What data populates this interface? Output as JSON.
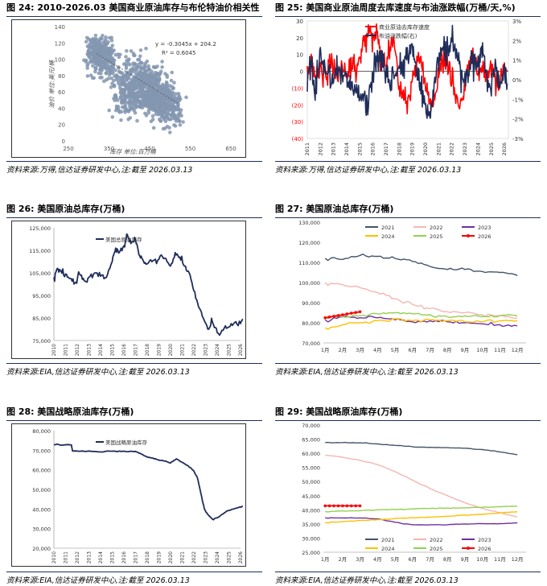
{
  "charts": [
    {
      "id": "c24",
      "title": "图 24: 2010-2026.03 美国商业原油库存与布伦特油价相关性",
      "source": "资料来源:万得,信达证券研发中心,注:截至 2026.03.13",
      "chart_data": {
        "type": "scatter",
        "xlabel": "库存 单位:百万桶",
        "ylabel": "油价 单位:美元/桶",
        "xlim": [
          250,
          650
        ],
        "ylim": [
          0,
          140
        ],
        "xticks": [
          "250",
          "350",
          "450",
          "550",
          "650"
        ],
        "yticks": [
          "0",
          "20",
          "40",
          "60",
          "80",
          "100",
          "120",
          "140"
        ],
        "equation": "y = -0.3045x + 204.2",
        "r2": "R² = 0.6045",
        "trendline": {
          "slope": -0.3045,
          "intercept": 204.2,
          "x_range": [
            320,
            520
          ]
        },
        "clusters": [
          {
            "cx": 320,
            "cy": 108,
            "sx": 12,
            "sy": 10,
            "n": 220
          },
          {
            "cx": 345,
            "cy": 100,
            "sx": 10,
            "sy": 14,
            "n": 120
          },
          {
            "cx": 395,
            "cy": 65,
            "sx": 18,
            "sy": 18,
            "n": 260
          },
          {
            "cx": 440,
            "cy": 72,
            "sx": 22,
            "sy": 14,
            "n": 260
          },
          {
            "cx": 470,
            "cy": 50,
            "sx": 25,
            "sy": 9,
            "n": 320
          },
          {
            "cx": 500,
            "cy": 40,
            "sx": 15,
            "sy": 12,
            "n": 120
          }
        ]
      }
    },
    {
      "id": "c25",
      "title": "图 25: 美国商业原油周度去库速度与布油涨跌幅(万桶/天,%)",
      "source": "资料来源:万得,信达证券研发中心,注:截至 2026.03.13",
      "chart_data": {
        "type": "line",
        "yticks_left": [
          "30",
          "20",
          "10",
          "0",
          "(10)",
          "(20)",
          "(30)",
          "(40)"
        ],
        "ylim_left": [
          -40,
          30
        ],
        "yticks_right": [
          "3%",
          "2%",
          "1%",
          "0%",
          "-1%",
          "-2%",
          "-3%"
        ],
        "ylim_right": [
          -3,
          3
        ],
        "xticks": [
          "2011",
          "2012",
          "2013",
          "2014",
          "2015",
          "2016",
          "2017",
          "2018",
          "2019",
          "2020",
          "2021",
          "2022",
          "2023",
          "2024",
          "2025",
          "2026"
        ],
        "series": [
          {
            "name": "商业原油去库存速度",
            "axis": "left",
            "color": "#ff0000",
            "x": [
              2011.0,
              2011.3,
              2011.6,
              2012.0,
              2012.4,
              2012.8,
              2013.2,
              2013.6,
              2014.0,
              2014.3,
              2014.6,
              2015.0,
              2015.3,
              2015.6,
              2016.0,
              2016.3,
              2016.6,
              2017.0,
              2017.3,
              2017.6,
              2018.0,
              2018.3,
              2018.6,
              2019.0,
              2019.3,
              2019.6,
              2020.0,
              2020.3,
              2020.6,
              2021.0,
              2021.3,
              2021.6,
              2022.0,
              2022.3,
              2022.6,
              2023.0,
              2023.3,
              2023.6,
              2024.0,
              2024.3,
              2024.6,
              2025.0,
              2025.3,
              2025.6,
              2026.0,
              2026.2
            ],
            "y": [
              0,
              6,
              -5,
              4,
              -4,
              7,
              -3,
              5,
              -2,
              3,
              -1,
              5,
              18,
              22,
              18,
              25,
              10,
              2,
              15,
              18,
              -8,
              -15,
              -20,
              -5,
              3,
              6,
              -10,
              -18,
              -20,
              -5,
              8,
              5,
              -2,
              -15,
              -22,
              -8,
              5,
              8,
              -3,
              4,
              -5,
              3,
              -2,
              -6,
              2,
              0
            ]
          },
          {
            "name": "布油涨跌幅(右)",
            "axis": "right",
            "color": "#1f2d5a",
            "x": [
              2011.0,
              2011.3,
              2011.6,
              2012.0,
              2012.4,
              2012.8,
              2013.2,
              2013.6,
              2014.0,
              2014.3,
              2014.6,
              2015.0,
              2015.3,
              2015.6,
              2016.0,
              2016.3,
              2016.6,
              2017.0,
              2017.3,
              2017.6,
              2018.0,
              2018.3,
              2018.6,
              2019.0,
              2019.3,
              2019.6,
              2020.0,
              2020.3,
              2020.6,
              2021.0,
              2021.3,
              2021.6,
              2022.0,
              2022.3,
              2022.6,
              2023.0,
              2023.3,
              2023.6,
              2024.0,
              2024.3,
              2024.6,
              2025.0,
              2025.3,
              2025.6,
              2026.0,
              2026.2
            ],
            "y": [
              0.3,
              0.8,
              -0.5,
              1.2,
              0.6,
              -0.3,
              0.4,
              0.2,
              0.3,
              -0.2,
              -0.6,
              -1.2,
              -0.8,
              -1.4,
              0.5,
              1.0,
              1.3,
              0.2,
              -0.3,
              0.4,
              0.8,
              0.6,
              1.2,
              1.5,
              0.2,
              -0.2,
              -1.5,
              -2.0,
              -0.8,
              1.0,
              1.8,
              1.2,
              2.2,
              1.5,
              0.6,
              -0.3,
              0.5,
              1.0,
              0.8,
              1.6,
              0.2,
              -0.4,
              1.3,
              -0.5,
              0.4,
              -0.2
            ]
          }
        ]
      }
    },
    {
      "id": "c26",
      "title": "图 26: 美国原油总库存(万桶)",
      "source": "资料来源:EIA,信达证券研发中心,注:截至 2026.03.13",
      "chart_data": {
        "type": "line",
        "ylim": [
          75000,
          125000
        ],
        "yticks": [
          "75,000",
          "85,000",
          "95,000",
          "105,000",
          "115,000",
          "125,000"
        ],
        "xticks": [
          "2010",
          "2011",
          "2012",
          "2013",
          "2014",
          "2015",
          "2016",
          "2017",
          "2018",
          "2019",
          "2020",
          "2021",
          "2022",
          "2023",
          "2024",
          "2025",
          "2026"
        ],
        "series": [
          {
            "name": "美国总原油库存",
            "color": "#1f2d5a",
            "x": [
              2010.0,
              2010.3,
              2010.6,
              2011.0,
              2011.4,
              2011.8,
              2012.2,
              2012.6,
              2013.0,
              2013.5,
              2014.0,
              2014.5,
              2015.0,
              2015.3,
              2015.6,
              2016.0,
              2016.3,
              2016.6,
              2017.0,
              2017.3,
              2017.6,
              2018.0,
              2018.5,
              2019.0,
              2019.5,
              2020.0,
              2020.4,
              2020.8,
              2021.2,
              2021.6,
              2022.0,
              2022.4,
              2022.8,
              2023.2,
              2023.6,
              2024.0,
              2024.5,
              2025.0,
              2025.5,
              2026.0,
              2026.2
            ],
            "y": [
              103000,
              107000,
              106000,
              104500,
              102500,
              100500,
              104500,
              101500,
              103000,
              105000,
              103500,
              103000,
              110000,
              116000,
              114000,
              117000,
              122000,
              118000,
              120000,
              113000,
              111000,
              109000,
              110500,
              111000,
              111500,
              108000,
              114000,
              112000,
              108000,
              105000,
              97000,
              90000,
              85000,
              80000,
              83000,
              78500,
              79500,
              81000,
              83000,
              82500,
              84500
            ]
          }
        ]
      }
    },
    {
      "id": "c27",
      "title": "图 27: 美国原油总库存(万桶)",
      "source": "资料来源:EIA,信达证券研发中心,注:截至 2026.03.13",
      "chart_data": {
        "type": "line",
        "ylim": [
          70000,
          130000
        ],
        "yticks": [
          "70,000",
          "80,000",
          "90,000",
          "100,000",
          "110,000",
          "120,000",
          "130,000"
        ],
        "categories": [
          "1月",
          "2月",
          "3月",
          "4月",
          "5月",
          "6月",
          "7月",
          "8月",
          "9月",
          "10月",
          "11月",
          "12月"
        ],
        "series": [
          {
            "name": "2021",
            "color": "#44546a",
            "values": [
              112000,
              111500,
              113500,
              113000,
              112000,
              110500,
              108000,
              106500,
              106500,
              105500,
              105000,
              103500
            ]
          },
          {
            "name": "2022",
            "color": "#f4b6b0",
            "values": [
              100000,
              99000,
              97500,
              95000,
              92000,
              89000,
              87000,
              85500,
              85000,
              84000,
              83500,
              82500
            ]
          },
          {
            "name": "2023",
            "color": "#7030a0",
            "values": [
              81500,
              83000,
              82500,
              82500,
              81500,
              80500,
              81000,
              80500,
              80000,
              79500,
              79000,
              78500
            ]
          },
          {
            "name": "2024",
            "color": "#ffc000",
            "values": [
              77500,
              79000,
              80000,
              81000,
              82000,
              81000,
              81500,
              81000,
              80500,
              80500,
              81000,
              81000
            ]
          },
          {
            "name": "2025",
            "color": "#92d050",
            "values": [
              82500,
              83000,
              83500,
              84500,
              85000,
              84500,
              84000,
              83000,
              83500,
              83000,
              83500,
              83500
            ]
          },
          {
            "name": "2026",
            "color": "#ff0000",
            "values": [
              82500,
              84000,
              85500,
              null,
              null,
              null,
              null,
              null,
              null,
              null,
              null,
              null
            ]
          }
        ]
      }
    },
    {
      "id": "c28",
      "title": "图 28: 美国战略原油库存(万桶)",
      "source": "资料来源:EIA,信达证券研发中心,注:截至 2026.03.13",
      "chart_data": {
        "type": "line",
        "ylim": [
          20000,
          80000
        ],
        "yticks": [
          "20,000",
          "30,000",
          "40,000",
          "50,000",
          "60,000",
          "70,000",
          "80,000"
        ],
        "xticks": [
          "2010",
          "2011",
          "2012",
          "2013",
          "2014",
          "2015",
          "2016",
          "2017",
          "2018",
          "2019",
          "2020",
          "2021",
          "2022",
          "2023",
          "2024",
          "2025",
          "2026"
        ],
        "series": [
          {
            "name": "美国战略原油库存",
            "color": "#1f2d5a",
            "x": [
              2010.0,
              2011.5,
              2011.6,
              2013.0,
              2014.0,
              2015.0,
              2016.0,
              2017.0,
              2017.5,
              2018.0,
              2018.5,
              2019.0,
              2019.5,
              2020.0,
              2020.5,
              2021.0,
              2021.5,
              2022.0,
              2022.3,
              2022.6,
              2022.9,
              2023.2,
              2023.6,
              2024.0,
              2024.5,
              2025.0,
              2025.5,
              2026.0,
              2026.2
            ],
            "y": [
              72700,
              72700,
              69600,
              69600,
              69100,
              69500,
              69500,
              69400,
              68000,
              66500,
              66000,
              64900,
              64500,
              63500,
              65600,
              63800,
              62100,
              59400,
              56000,
              48000,
              40000,
              37200,
              34700,
              35500,
              37500,
              39300,
              40200,
              41000,
              41400
            ]
          }
        ]
      }
    },
    {
      "id": "c29",
      "title": "图 29: 美国战略原油库存(万桶)",
      "source": "资料来源:EIA,信达证券研发中心,注:截至 2026.03.13",
      "chart_data": {
        "type": "line",
        "ylim": [
          25000,
          70000
        ],
        "yticks": [
          "25,000",
          "30,000",
          "35,000",
          "40,000",
          "45,000",
          "50,000",
          "55,000",
          "60,000",
          "65,000",
          "70,000"
        ],
        "categories": [
          "1月",
          "2月",
          "3月",
          "4月",
          "5月",
          "6月",
          "7月",
          "8月",
          "9月",
          "10月",
          "11月",
          "12月"
        ],
        "series": [
          {
            "name": "2021",
            "color": "#44546a",
            "values": [
              63800,
              63800,
              63700,
              63300,
              62800,
              62300,
              62100,
              62000,
              61800,
              61300,
              60500,
              59500
            ]
          },
          {
            "name": "2022",
            "color": "#f4b6b0",
            "values": [
              59400,
              58600,
              57500,
              56000,
              53500,
              50500,
              47500,
              45000,
              42500,
              40500,
              39000,
              37500
            ]
          },
          {
            "name": "2023",
            "color": "#7030a0",
            "values": [
              37200,
              37100,
              37100,
              36800,
              35600,
              34700,
              34700,
              34700,
              35000,
              35100,
              35100,
              35400
            ]
          },
          {
            "name": "2024",
            "color": "#ffc000",
            "values": [
              35500,
              35800,
              36200,
              36500,
              36900,
              37200,
              37400,
              37700,
              38100,
              38400,
              38900,
              39300
            ]
          },
          {
            "name": "2025",
            "color": "#92d050",
            "values": [
              39400,
              39600,
              39700,
              40000,
              40100,
              40300,
              40500,
              40600,
              40700,
              40900,
              41100,
              41300
            ]
          },
          {
            "name": "2026",
            "color": "#ff0000",
            "values": [
              41400,
              41400,
              41400,
              null,
              null,
              null,
              null,
              null,
              null,
              null,
              null,
              null
            ]
          }
        ]
      }
    }
  ]
}
